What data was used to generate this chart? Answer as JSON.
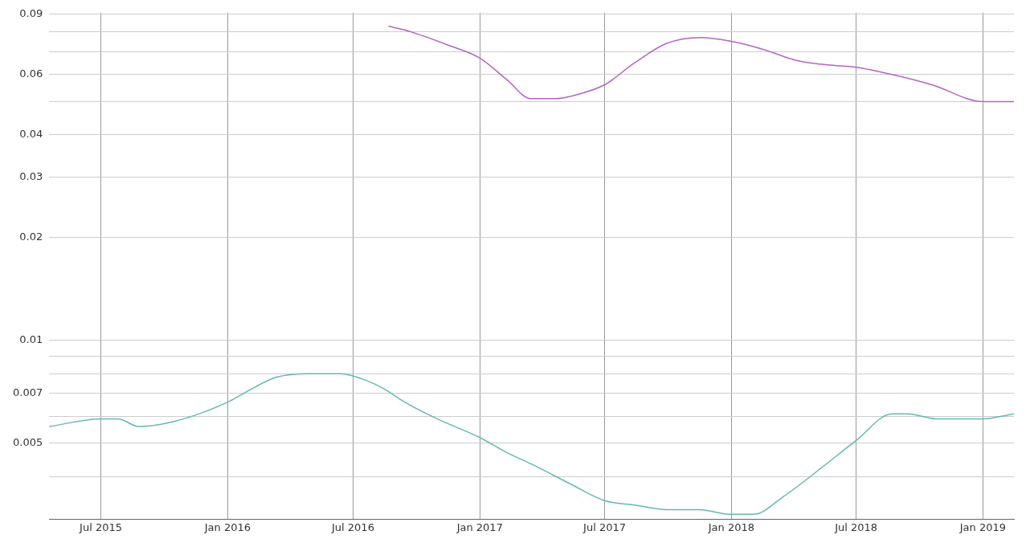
{
  "chart_data": {
    "type": "line",
    "log": "y",
    "grid": true,
    "legend": false,
    "marker": "none",
    "line_style": "solid",
    "xlim": [
      "2015-04-17",
      "2019-02-15"
    ],
    "xticks": [
      {
        "value": "2015-07-01",
        "label": "Jul 2015"
      },
      {
        "value": "2016-01-01",
        "label": "Jan 2016"
      },
      {
        "value": "2016-07-01",
        "label": "Jul 2016"
      },
      {
        "value": "2017-01-01",
        "label": "Jan 2017"
      },
      {
        "value": "2017-07-01",
        "label": "Jul 2017"
      },
      {
        "value": "2018-01-01",
        "label": "Jan 2018"
      },
      {
        "value": "2018-07-01",
        "label": "Jul 2018"
      },
      {
        "value": "2019-01-01",
        "label": "Jan 2019"
      }
    ],
    "ylim": [
      0.003,
      0.091
    ],
    "yticks": [
      {
        "value": 0.004,
        "label": null
      },
      0.005,
      {
        "value": 0.006,
        "label": null
      },
      0.007,
      {
        "value": 0.008,
        "label": null
      },
      {
        "value": 0.009,
        "label": null
      },
      0.01,
      0.02,
      0.03,
      0.04,
      {
        "value": 0.05,
        "label": null
      },
      0.06,
      {
        "value": 0.07,
        "label": null
      },
      {
        "value": 0.08,
        "label": null
      },
      0.09
    ],
    "series": [
      {
        "color": "#66b8b0",
        "x": [
          "2015-04-17",
          "2015-07-01",
          "2015-07-26",
          "2015-08-25",
          "2015-10-16",
          "2016-01-01",
          "2016-01-24",
          "2016-03-11",
          "2016-04-27",
          "2016-06-13",
          "2016-07-23",
          "2016-08-16",
          "2016-09-14",
          "2016-10-31",
          "2017-01-01",
          "2017-02-09",
          "2017-03-22",
          "2017-05-13",
          "2017-07-01",
          "2017-08-14",
          "2017-09-29",
          "2017-11-15",
          "2018-01-01",
          "2018-02-02",
          "2018-03-18",
          "2018-05-09",
          "2018-07-01",
          "2018-08-22",
          "2018-09-14",
          "2018-10-25",
          "2019-01-01",
          "2019-02-15"
        ],
        "values": [
          0.0056,
          0.0059,
          0.0059,
          0.0056,
          0.0058,
          0.0066,
          0.007,
          0.0078,
          0.008,
          0.008,
          0.0076,
          0.0072,
          0.0066,
          0.0059,
          0.0052,
          0.0047,
          0.0043,
          0.0038,
          0.0034,
          0.0033,
          0.0032,
          0.0032,
          0.0031,
          0.0031,
          0.0035,
          0.0042,
          0.0051,
          0.0061,
          0.0061,
          0.0059,
          0.0059,
          0.0061
        ]
      },
      {
        "color": "#b464c4",
        "x": [
          "2016-08-22",
          "2016-09-14",
          "2016-11-17",
          "2017-01-01",
          "2017-02-09",
          "2017-03-16",
          "2017-04-21",
          "2017-05-16",
          "2017-07-01",
          "2017-08-14",
          "2017-09-29",
          "2017-11-18",
          "2018-01-01",
          "2018-02-17",
          "2018-04-05",
          "2018-05-21",
          "2018-07-01",
          "2018-08-22",
          "2018-10-19",
          "2019-01-01",
          "2019-02-15"
        ],
        "values": [
          0.083,
          0.081,
          0.073,
          0.067,
          0.058,
          0.051,
          0.051,
          0.052,
          0.056,
          0.065,
          0.074,
          0.077,
          0.075,
          0.071,
          0.066,
          0.064,
          0.063,
          0.06,
          0.056,
          0.05,
          0.05
        ]
      }
    ]
  }
}
